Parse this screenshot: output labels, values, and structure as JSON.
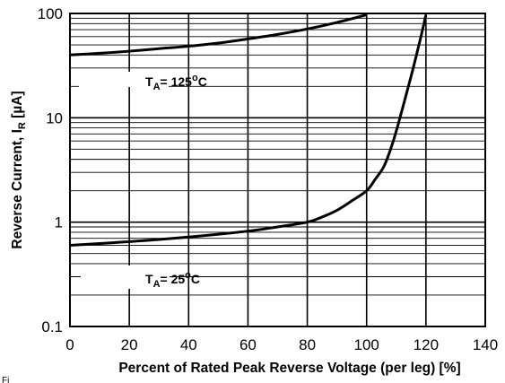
{
  "chart_data": {
    "type": "line",
    "xlabel": "Percent of Rated Peak Reverse Voltage (per leg) [%]",
    "ylabel": {
      "prefix": "Reverse Current, I",
      "subscript": "R",
      "suffix": " [µA]"
    },
    "xlim": [
      0,
      140
    ],
    "ylim": [
      0.1,
      100
    ],
    "y_scale": "log",
    "grid": true,
    "x_ticks": [
      "0",
      "20",
      "40",
      "60",
      "80",
      "100",
      "120",
      "140"
    ],
    "y_ticks": [
      "0.1",
      "1",
      "10",
      "100"
    ],
    "x_tick_values": [
      0,
      20,
      40,
      60,
      80,
      100,
      120,
      140
    ],
    "y_tick_values": [
      0.1,
      1,
      10,
      100
    ],
    "series": [
      {
        "x": [
          0,
          10,
          20,
          30,
          40,
          50,
          60,
          70,
          80,
          90,
          100
        ],
        "y": [
          40,
          41.5,
          43.5,
          46,
          48.5,
          52,
          57,
          63,
          71,
          82,
          97
        ]
      },
      {
        "x": [
          0,
          20,
          40,
          60,
          70,
          80,
          85,
          90,
          95,
          100,
          103,
          106,
          109,
          112,
          115,
          118,
          120
        ],
        "y": [
          0.6,
          0.65,
          0.72,
          0.82,
          0.9,
          1.0,
          1.12,
          1.3,
          1.6,
          2.0,
          2.6,
          3.5,
          6.0,
          12,
          25,
          55,
          97
        ]
      }
    ],
    "annotations": [
      {
        "name": "ta-125",
        "prefix": "T",
        "subscript": "A",
        "suffix": "= 125",
        "sup": "o",
        "unit": "C"
      },
      {
        "name": "ta-25",
        "prefix": "T",
        "subscript": "A",
        "suffix": "= 25",
        "sup": "o",
        "unit": "C"
      }
    ]
  },
  "stray_text": "Fi"
}
